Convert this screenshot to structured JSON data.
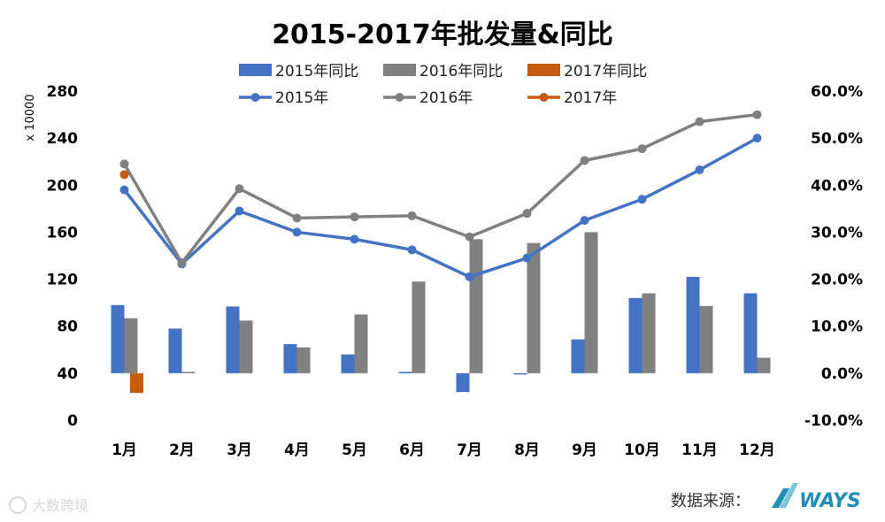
{
  "title": "2015-2017年批发量&同比",
  "left_unit": "x 10000",
  "source_label": "数据来源：",
  "brand": "WAYS",
  "watermark": "大数跨境",
  "colors": {
    "s2015": "#4472C4",
    "s2016": "#808080",
    "s2017": "#C55A11"
  },
  "chart_data": {
    "type": "bar+line",
    "title": "2015-2017年批发量&同比",
    "categories": [
      "1月",
      "2月",
      "3月",
      "4月",
      "5月",
      "6月",
      "7月",
      "8月",
      "9月",
      "10月",
      "11月",
      "12月"
    ],
    "left_axis": {
      "label": "x 10000",
      "min": 0,
      "max": 280,
      "ticks": [
        "0",
        "40",
        "80",
        "120",
        "160",
        "200",
        "240",
        "280"
      ]
    },
    "right_axis": {
      "min": -0.1,
      "max": 0.6,
      "ticks": [
        "-10.0%",
        "0.0%",
        "10.0%",
        "20.0%",
        "30.0%",
        "40.0%",
        "50.0%",
        "60.0%"
      ]
    },
    "bar_series": [
      {
        "name": "2015年同比",
        "color": "#4472C4",
        "values": [
          0.145,
          0.095,
          0.142,
          0.062,
          0.04,
          0.003,
          -0.04,
          -0.002,
          0.072,
          0.16,
          0.205,
          0.17
        ]
      },
      {
        "name": "2016年同比",
        "color": "#808080",
        "values": [
          0.117,
          0.003,
          0.112,
          0.055,
          0.125,
          0.195,
          0.285,
          0.277,
          0.3,
          0.17,
          0.143,
          0.033
        ]
      },
      {
        "name": "2017年同比",
        "color": "#C55A11",
        "values": [
          -0.042,
          null,
          null,
          null,
          null,
          null,
          null,
          null,
          null,
          null,
          null,
          null
        ]
      }
    ],
    "line_series": [
      {
        "name": "2015年",
        "color": "#4472C4",
        "values": [
          196,
          133,
          178,
          160,
          154,
          145,
          122,
          138,
          170,
          188,
          213,
          240
        ]
      },
      {
        "name": "2016年",
        "color": "#808080",
        "values": [
          218,
          134,
          197,
          172,
          173,
          174,
          156,
          176,
          221,
          231,
          254,
          260
        ]
      },
      {
        "name": "2017年",
        "color": "#C55A11",
        "values": [
          209,
          null,
          null,
          null,
          null,
          null,
          null,
          null,
          null,
          null,
          null,
          null
        ]
      }
    ],
    "legend_position": "top",
    "grid": false
  }
}
